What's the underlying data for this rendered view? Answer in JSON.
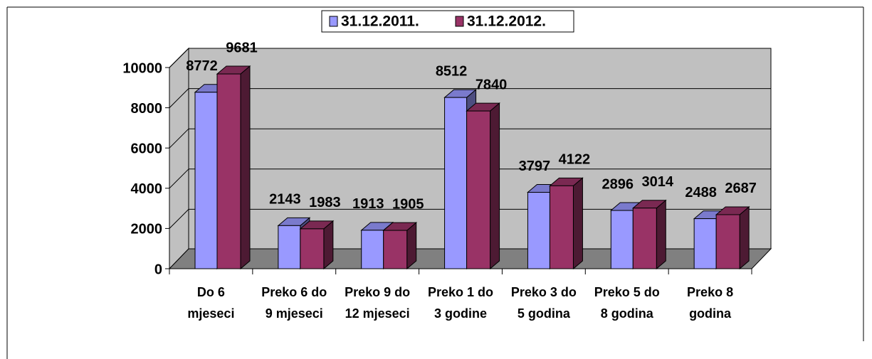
{
  "chart_data": {
    "type": "bar3d",
    "categories": [
      [
        "Do 6",
        "mjeseci"
      ],
      [
        "Preko 6 do",
        "9 mjeseci"
      ],
      [
        "Preko 9 do",
        "12 mjeseci"
      ],
      [
        "Preko 1 do",
        "3 godine"
      ],
      [
        "Preko 3 do",
        "5 godina"
      ],
      [
        "Preko 5 do",
        "8 godina"
      ],
      [
        "Preko 8",
        "godina"
      ]
    ],
    "series": [
      {
        "name": "31.12.2011.",
        "color": "#9999ff",
        "values": [
          8772,
          2143,
          1913,
          8512,
          3797,
          2896,
          2488
        ]
      },
      {
        "name": "31.12.2012.",
        "color": "#993366",
        "values": [
          9681,
          1983,
          1905,
          7840,
          4122,
          3014,
          2687
        ]
      }
    ],
    "ylim": [
      0,
      10000
    ],
    "yticks": [
      0,
      2000,
      4000,
      6000,
      8000,
      10000
    ],
    "grid": true,
    "legend": "top"
  }
}
